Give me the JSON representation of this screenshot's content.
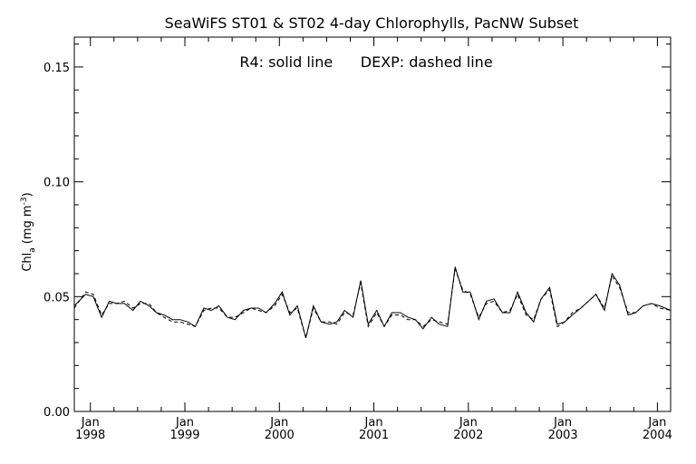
{
  "chart_data": {
    "type": "line",
    "title": "SeaWiFS ST01 & ST02 4-day Chlorophylls, PacNW Subset",
    "annotation": "R4: solid line      DEXP: dashed line",
    "ylabel_main": "Chl",
    "ylabel_sub": "a",
    "ylabel_unit": "(mg m",
    "ylabel_sup": "-3",
    "ylabel_close": ")",
    "xlim": [
      1997.83,
      2004.14
    ],
    "ylim": [
      0,
      0.163
    ],
    "yticks": [
      0.0,
      0.05,
      0.1,
      0.15
    ],
    "ytick_labels": [
      "0.00",
      "0.05",
      "0.10",
      "0.15"
    ],
    "xticks": [
      {
        "month": "Jan",
        "year": "1998",
        "x": 1998.0
      },
      {
        "month": "Jan",
        "year": "1999",
        "x": 1999.0
      },
      {
        "month": "Jan",
        "year": "2000",
        "x": 2000.0
      },
      {
        "month": "Jan",
        "year": "2001",
        "x": 2001.0
      },
      {
        "month": "Jan",
        "year": "2002",
        "x": 2002.0
      },
      {
        "month": "Jan",
        "year": "2003",
        "x": 2003.0
      },
      {
        "month": "Jan",
        "year": "2004",
        "x": 2004.0
      }
    ],
    "series": [
      {
        "name": "R4",
        "style": "solid",
        "color": "#000000",
        "x": [
          1997.83,
          1997.95,
          1998.03,
          1998.12,
          1998.2,
          1998.28,
          1998.36,
          1998.45,
          1998.53,
          1998.62,
          1998.7,
          1998.78,
          1998.87,
          1998.95,
          1999.03,
          1999.11,
          1999.2,
          1999.28,
          1999.36,
          1999.45,
          1999.53,
          1999.62,
          1999.7,
          1999.78,
          1999.86,
          1999.95,
          2000.03,
          2000.11,
          2000.19,
          2000.28,
          2000.36,
          2000.44,
          2000.53,
          2000.61,
          2000.69,
          2000.78,
          2000.86,
          2000.94,
          2001.03,
          2001.11,
          2001.19,
          2001.28,
          2001.36,
          2001.44,
          2001.52,
          2001.61,
          2001.69,
          2001.78,
          2001.86,
          2001.94,
          2002.02,
          2002.11,
          2002.19,
          2002.27,
          2002.36,
          2002.44,
          2002.52,
          2002.61,
          2002.69,
          2002.77,
          2002.86,
          2002.94,
          2003.02,
          2003.1,
          2003.19,
          2003.27,
          2003.35,
          2003.44,
          2003.52,
          2003.6,
          2003.69,
          2003.77,
          2003.85,
          2003.94,
          2004.02,
          2004.14
        ],
        "values": [
          0.046,
          0.051,
          0.05,
          0.041,
          0.048,
          0.047,
          0.047,
          0.044,
          0.048,
          0.046,
          0.043,
          0.042,
          0.04,
          0.04,
          0.039,
          0.037,
          0.045,
          0.044,
          0.046,
          0.041,
          0.04,
          0.044,
          0.045,
          0.045,
          0.043,
          0.047,
          0.052,
          0.042,
          0.046,
          0.032,
          0.046,
          0.039,
          0.038,
          0.039,
          0.044,
          0.041,
          0.057,
          0.038,
          0.044,
          0.037,
          0.043,
          0.043,
          0.041,
          0.04,
          0.036,
          0.041,
          0.038,
          0.037,
          0.063,
          0.052,
          0.052,
          0.04,
          0.048,
          0.049,
          0.043,
          0.043,
          0.052,
          0.043,
          0.039,
          0.049,
          0.054,
          0.038,
          0.039,
          0.042,
          0.045,
          0.048,
          0.051,
          0.044,
          0.06,
          0.055,
          0.042,
          0.043,
          0.046,
          0.047,
          0.046,
          0.044
        ]
      },
      {
        "name": "DEXP",
        "style": "dashed",
        "color": "#000000",
        "x": [
          1997.83,
          1997.95,
          1998.03,
          1998.12,
          1998.2,
          1998.28,
          1998.36,
          1998.45,
          1998.53,
          1998.62,
          1998.7,
          1998.78,
          1998.87,
          1998.95,
          1999.03,
          1999.11,
          1999.2,
          1999.28,
          1999.36,
          1999.45,
          1999.53,
          1999.62,
          1999.7,
          1999.78,
          1999.86,
          1999.95,
          2000.03,
          2000.11,
          2000.19,
          2000.28,
          2000.36,
          2000.44,
          2000.53,
          2000.61,
          2000.69,
          2000.78,
          2000.86,
          2000.94,
          2001.03,
          2001.11,
          2001.19,
          2001.28,
          2001.36,
          2001.44,
          2001.52,
          2001.61,
          2001.69,
          2001.78,
          2001.86,
          2001.94,
          2002.02,
          2002.11,
          2002.19,
          2002.27,
          2002.36,
          2002.44,
          2002.52,
          2002.61,
          2002.69,
          2002.77,
          2002.86,
          2002.94,
          2003.02,
          2003.1,
          2003.19,
          2003.27,
          2003.35,
          2003.44,
          2003.52,
          2003.6,
          2003.69,
          2003.77,
          2003.85,
          2003.94,
          2004.02,
          2004.14
        ],
        "values": [
          0.045,
          0.052,
          0.051,
          0.042,
          0.047,
          0.047,
          0.048,
          0.045,
          0.047,
          0.047,
          0.043,
          0.041,
          0.039,
          0.039,
          0.038,
          0.037,
          0.044,
          0.045,
          0.045,
          0.041,
          0.041,
          0.043,
          0.045,
          0.044,
          0.043,
          0.046,
          0.051,
          0.043,
          0.045,
          0.032,
          0.045,
          0.039,
          0.039,
          0.038,
          0.043,
          0.042,
          0.056,
          0.037,
          0.043,
          0.037,
          0.042,
          0.042,
          0.04,
          0.04,
          0.037,
          0.04,
          0.039,
          0.038,
          0.062,
          0.053,
          0.051,
          0.041,
          0.047,
          0.048,
          0.043,
          0.044,
          0.051,
          0.042,
          0.04,
          0.049,
          0.053,
          0.037,
          0.039,
          0.043,
          0.045,
          0.048,
          0.051,
          0.045,
          0.059,
          0.054,
          0.043,
          0.043,
          0.046,
          0.047,
          0.045,
          0.044
        ]
      }
    ]
  }
}
